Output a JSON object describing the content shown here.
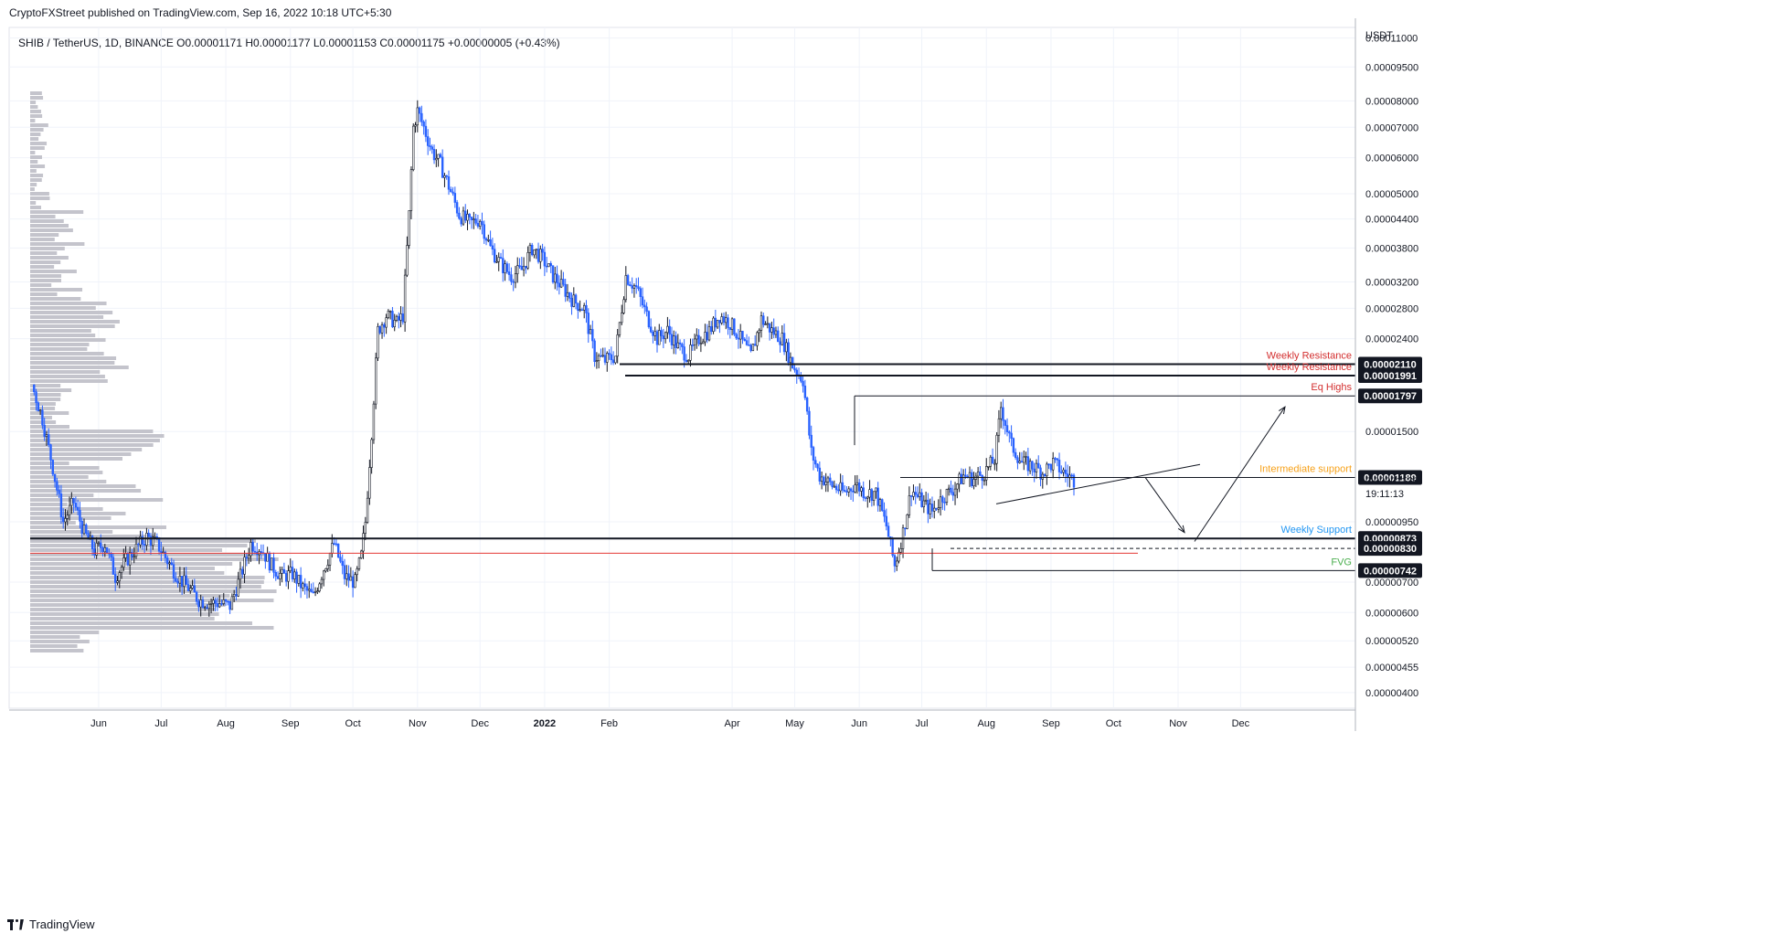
{
  "header": {
    "published": "CryptoFXStreet published on TradingView.com, Sep 16, 2022 10:18 UTC+5:30",
    "symbol_line": "SHIB / TetherUS, 1D, BINANCE  O0.00001171  H0.00001177  L0.00001153  C0.00001175  +0.00000005 (+0.43%)"
  },
  "footer": {
    "brand": "TradingView"
  },
  "chart_data": {
    "type": "candlestick",
    "title": "SHIB / TetherUS, 1D, BINANCE",
    "y_unit": "USDT",
    "y_scale": "log",
    "ylim": [
      3.8e-06,
      1.15e-05
    ],
    "y_ticks": [
      {
        "label": "0.00011000",
        "v": 0.00011
      },
      {
        "label": "0.00009500",
        "v": 9.5e-05
      },
      {
        "label": "0.00008000",
        "v": 8e-05
      },
      {
        "label": "0.00007000",
        "v": 7e-05
      },
      {
        "label": "0.00006000",
        "v": 6e-05
      },
      {
        "label": "0.00005000",
        "v": 5e-05
      },
      {
        "label": "0.00004400",
        "v": 4.4e-05
      },
      {
        "label": "0.00003800",
        "v": 3.8e-05
      },
      {
        "label": "0.00003200",
        "v": 3.2e-05
      },
      {
        "label": "0.00002800",
        "v": 2.8e-05
      },
      {
        "label": "0.00002400",
        "v": 2.4e-05
      },
      {
        "label": "0.00001500",
        "v": 1.5e-05
      },
      {
        "label": "0.00000950",
        "v": 9.5e-06
      },
      {
        "label": "0.00000700",
        "v": 7e-06
      },
      {
        "label": "0.00000600",
        "v": 6e-06
      },
      {
        "label": "0.00000520",
        "v": 5.2e-06
      },
      {
        "label": "0.00000455",
        "v": 4.55e-06
      },
      {
        "label": "0.00000400",
        "v": 4e-06
      }
    ],
    "x_ticks": [
      {
        "label": "Jun",
        "bold": false
      },
      {
        "label": "Jul",
        "bold": false
      },
      {
        "label": "Aug",
        "bold": false
      },
      {
        "label": "Sep",
        "bold": false
      },
      {
        "label": "Oct",
        "bold": false
      },
      {
        "label": "Nov",
        "bold": false
      },
      {
        "label": "Dec",
        "bold": false
      },
      {
        "label": "2022",
        "bold": true
      },
      {
        "label": "Feb",
        "bold": false
      },
      {
        "label": "Apr",
        "bold": false
      },
      {
        "label": "May",
        "bold": false
      },
      {
        "label": "Jun",
        "bold": false
      },
      {
        "label": "Jul",
        "bold": false
      },
      {
        "label": "Aug",
        "bold": false
      },
      {
        "label": "Sep",
        "bold": false
      },
      {
        "label": "Oct",
        "bold": false
      },
      {
        "label": "Nov",
        "bold": false
      },
      {
        "label": "Dec",
        "bold": false
      }
    ],
    "x_tick_days": [
      32,
      62,
      93,
      124,
      154,
      185,
      215,
      246,
      277,
      336,
      366,
      397,
      427,
      458,
      489,
      519,
      550,
      580
    ],
    "price_path": [
      [
        0,
        1.9e-05
      ],
      [
        5,
        1.6e-05
      ],
      [
        10,
        1.25e-05
      ],
      [
        15,
        9.5e-06
      ],
      [
        20,
        1.05e-05
      ],
      [
        25,
        9e-06
      ],
      [
        30,
        8.2e-06
      ],
      [
        35,
        8.5e-06
      ],
      [
        40,
        7.2e-06
      ],
      [
        45,
        7.8e-06
      ],
      [
        50,
        8.3e-06
      ],
      [
        55,
        8.8e-06
      ],
      [
        60,
        8.5e-06
      ],
      [
        65,
        7.8e-06
      ],
      [
        70,
        7.2e-06
      ],
      [
        75,
        6.8e-06
      ],
      [
        80,
        6.4e-06
      ],
      [
        85,
        6.3e-06
      ],
      [
        90,
        6.3e-06
      ],
      [
        95,
        6.2e-06
      ],
      [
        100,
        7.2e-06
      ],
      [
        105,
        8.5e-06
      ],
      [
        110,
        8.3e-06
      ],
      [
        115,
        7.6e-06
      ],
      [
        120,
        7.2e-06
      ],
      [
        125,
        7.3e-06
      ],
      [
        130,
        6.8e-06
      ],
      [
        135,
        6.5e-06
      ],
      [
        140,
        7.5e-06
      ],
      [
        145,
        8.5e-06
      ],
      [
        150,
        7.2e-06
      ],
      [
        155,
        7e-06
      ],
      [
        158,
        8e-06
      ],
      [
        160,
        9.5e-06
      ],
      [
        163,
        1.5e-05
      ],
      [
        166,
        2.5e-05
      ],
      [
        170,
        2.7e-05
      ],
      [
        175,
        2.6e-05
      ],
      [
        178,
        2.7e-05
      ],
      [
        181,
        4.5e-05
      ],
      [
        183,
        7e-05
      ],
      [
        185,
        7.6e-05
      ],
      [
        188,
        7e-05
      ],
      [
        192,
        6.2e-05
      ],
      [
        196,
        5.8e-05
      ],
      [
        200,
        5.2e-05
      ],
      [
        205,
        4.5e-05
      ],
      [
        210,
        4.3e-05
      ],
      [
        215,
        4.4e-05
      ],
      [
        220,
        3.8e-05
      ],
      [
        225,
        3.5e-05
      ],
      [
        230,
        3.3e-05
      ],
      [
        235,
        3.4e-05
      ],
      [
        240,
        3.8e-05
      ],
      [
        245,
        3.6e-05
      ],
      [
        250,
        3.3e-05
      ],
      [
        255,
        3.1e-05
      ],
      [
        260,
        2.9e-05
      ],
      [
        265,
        2.8e-05
      ],
      [
        270,
        2.2e-05
      ],
      [
        275,
        2.15e-05
      ],
      [
        280,
        2.2e-05
      ],
      [
        285,
        3.3e-05
      ],
      [
        290,
        3.1e-05
      ],
      [
        295,
        2.7e-05
      ],
      [
        300,
        2.4e-05
      ],
      [
        305,
        2.5e-05
      ],
      [
        310,
        2.3e-05
      ],
      [
        315,
        2.2e-05
      ],
      [
        320,
        2.4e-05
      ],
      [
        325,
        2.5e-05
      ],
      [
        330,
        2.7e-05
      ],
      [
        335,
        2.6e-05
      ],
      [
        340,
        2.4e-05
      ],
      [
        345,
        2.2e-05
      ],
      [
        350,
        2.65e-05
      ],
      [
        355,
        2.5e-05
      ],
      [
        360,
        2.4e-05
      ],
      [
        365,
        2.1e-05
      ],
      [
        370,
        1.95e-05
      ],
      [
        374,
        1.35e-05
      ],
      [
        378,
        1.2e-05
      ],
      [
        383,
        1.15e-05
      ],
      [
        390,
        1.1e-05
      ],
      [
        395,
        1.15e-05
      ],
      [
        400,
        1.1e-05
      ],
      [
        405,
        1.1e-05
      ],
      [
        410,
        9.3e-06
      ],
      [
        414,
        7.6e-06
      ],
      [
        418,
        9e-06
      ],
      [
        422,
        1.12e-05
      ],
      [
        427,
        1.05e-05
      ],
      [
        432,
        1e-05
      ],
      [
        437,
        1.08e-05
      ],
      [
        442,
        1.12e-05
      ],
      [
        447,
        1.2e-05
      ],
      [
        452,
        1.18e-05
      ],
      [
        457,
        1.22e-05
      ],
      [
        462,
        1.3e-05
      ],
      [
        465,
        1.7e-05
      ],
      [
        470,
        1.4e-05
      ],
      [
        475,
        1.28e-05
      ],
      [
        480,
        1.26e-05
      ],
      [
        485,
        1.22e-05
      ],
      [
        490,
        1.28e-05
      ],
      [
        495,
        1.22e-05
      ],
      [
        500,
        1.175e-05
      ]
    ],
    "horizontal_levels": [
      {
        "label": "Weekly Resistance",
        "value_label": "0.00002110",
        "v": 2.11e-05,
        "color": "#d32f2f"
      },
      {
        "label": "Weekly Resistance",
        "value_label": "0.00001991",
        "v": 1.991e-05,
        "color": "#d32f2f"
      },
      {
        "label": "Eq Highs",
        "value_label": "0.00001797",
        "v": 1.797e-05,
        "color": "#d32f2f"
      },
      {
        "label": "Intermediate support",
        "value_label": "0.00001189",
        "v": 1.189e-05,
        "color": "#f7a21b"
      },
      {
        "label": "Weekly Support",
        "value_label": "0.00000873",
        "v": 8.73e-06,
        "color": "#2196f3"
      },
      {
        "label": "",
        "value_label": "0.00000830",
        "v": 8.3e-06,
        "color": "#131722"
      },
      {
        "label": "FVG",
        "value_label": "0.00000742",
        "v": 7.42e-06,
        "color": "#4caf50"
      }
    ],
    "current_price": {
      "label": "0.00001175",
      "v": 1.175e-05,
      "countdown": "19:11:13"
    },
    "colors": {
      "up": "#131722",
      "down": "#2962ff",
      "volume_profile": "#c4c4cc",
      "red_line": "#e53935"
    }
  }
}
